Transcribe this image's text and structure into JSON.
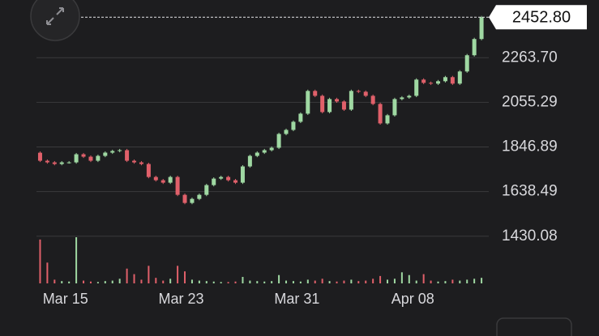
{
  "chart_data": {
    "type": "candlestick",
    "open": [
      1820.0,
      1782.5,
      1774.9,
      1767.3,
      1774.9,
      1774.9,
      1812.8,
      1801.4,
      1782.5,
      1805.2,
      1820.4,
      1828.0,
      1831.8,
      1782.5,
      1774.9,
      1767.3,
      1706.7,
      1691.6,
      1680.2,
      1706.7,
      1623.4,
      1585.5,
      1604.4,
      1623.4,
      1668.8,
      1699.1,
      1706.7,
      1691.6,
      1680.2,
      1756.0,
      1805.2,
      1820.4,
      1831.8,
      1843.1,
      1907.5,
      1926.5,
      1964.4,
      2002.3,
      2108.4,
      2085.6,
      2009.8,
      2070.5,
      2059.1,
      2021.2,
      2108.4,
      2104.6,
      2085.6,
      2047.7,
      1956.8,
      1994.7,
      2070.5,
      2078.0,
      2085.6,
      2161.4,
      2146.2,
      2142.5,
      2153.8,
      2172.8,
      2142.5,
      2199.3,
      2275.1,
      2350.8
    ],
    "high": [
      1826.0,
      1788.5,
      1780.9,
      1780.9,
      1780.9,
      1818.8,
      1818.8,
      1807.4,
      1811.2,
      1826.4,
      1834.0,
      1837.8,
      1837.8,
      1788.5,
      1780.9,
      1773.3,
      1712.7,
      1697.6,
      1712.7,
      1712.7,
      1629.4,
      1610.4,
      1629.4,
      1674.8,
      1705.1,
      1712.7,
      1712.7,
      1697.6,
      1762.0,
      1811.2,
      1826.4,
      1837.8,
      1849.1,
      1913.5,
      1932.5,
      1970.4,
      2008.3,
      2114.4,
      2114.4,
      2091.6,
      2076.5,
      2076.5,
      2065.1,
      2114.4,
      2114.4,
      2110.6,
      2091.6,
      2053.7,
      2000.7,
      2076.5,
      2084.0,
      2091.6,
      2167.4,
      2167.4,
      2152.2,
      2159.8,
      2178.8,
      2178.8,
      2205.3,
      2281.1,
      2356.8,
      2458.8
    ],
    "low": [
      1776.5,
      1768.9,
      1761.3,
      1761.3,
      1768.9,
      1768.9,
      1795.4,
      1776.5,
      1776.5,
      1799.2,
      1814.4,
      1822.0,
      1776.5,
      1768.9,
      1761.3,
      1700.7,
      1685.6,
      1674.2,
      1674.2,
      1617.4,
      1579.5,
      1579.5,
      1598.4,
      1617.4,
      1662.8,
      1693.1,
      1685.6,
      1674.2,
      1674.2,
      1750.0,
      1799.2,
      1814.4,
      1825.8,
      1837.1,
      1901.5,
      1920.5,
      1958.4,
      1996.3,
      2079.6,
      2003.8,
      2003.8,
      2053.1,
      2015.2,
      2015.2,
      2098.6,
      2079.6,
      2041.7,
      1950.8,
      1950.8,
      1988.7,
      2064.5,
      2072.0,
      2079.6,
      2140.2,
      2136.5,
      2136.5,
      2147.8,
      2136.5,
      2136.5,
      2193.3,
      2269.1,
      2344.8
    ],
    "close": [
      1782.5,
      1774.9,
      1767.3,
      1774.9,
      1774.9,
      1812.8,
      1801.4,
      1782.5,
      1805.2,
      1820.4,
      1828.0,
      1831.8,
      1782.5,
      1774.9,
      1767.3,
      1706.7,
      1691.6,
      1680.2,
      1706.7,
      1623.4,
      1585.5,
      1604.4,
      1623.4,
      1668.8,
      1699.1,
      1706.7,
      1691.6,
      1680.2,
      1756.0,
      1805.2,
      1820.4,
      1831.8,
      1843.1,
      1907.5,
      1926.5,
      1964.4,
      2002.3,
      2108.4,
      2085.6,
      2009.8,
      2070.5,
      2059.1,
      2021.2,
      2108.4,
      2104.6,
      2085.6,
      2047.7,
      1956.8,
      1994.7,
      2070.5,
      2078.0,
      2085.6,
      2161.4,
      2146.2,
      2142.5,
      2153.8,
      2172.8,
      2142.5,
      2199.3,
      2275.1,
      2350.8,
      2452.8
    ],
    "volume": [
      95,
      45,
      8,
      5,
      4,
      100,
      6,
      4,
      3,
      5,
      6,
      10,
      32,
      20,
      8,
      38,
      12,
      6,
      10,
      38,
      26,
      8,
      6,
      5,
      4,
      3,
      3,
      4,
      14,
      6,
      5,
      4,
      5,
      18,
      6,
      5,
      4,
      8,
      6,
      10,
      5,
      4,
      6,
      8,
      5,
      6,
      10,
      16,
      8,
      10,
      24,
      18,
      6,
      20,
      6,
      4,
      5,
      8,
      6,
      8,
      10,
      12
    ],
    "xlim": [
      -0.5,
      62
    ],
    "xticks": [
      {
        "value": 3.5,
        "label": "Mar 15"
      },
      {
        "value": 19.5,
        "label": "Mar 23"
      },
      {
        "value": 35.5,
        "label": "Mar 31"
      },
      {
        "value": 51.5,
        "label": "Apr 08"
      }
    ],
    "ylim": [
      1210,
      2533
    ],
    "yticks": [
      1430.08,
      1638.49,
      1846.89,
      2055.29,
      {
        "value": 2263.7,
        "label": "2263.70"
      }
    ],
    "volume_lim": [
      0,
      100
    ],
    "last_price": {
      "value": 2452.8,
      "label": "2452.80"
    },
    "up_color": "#9fd8a2",
    "down_color": "#e0606a",
    "grid": true
  }
}
